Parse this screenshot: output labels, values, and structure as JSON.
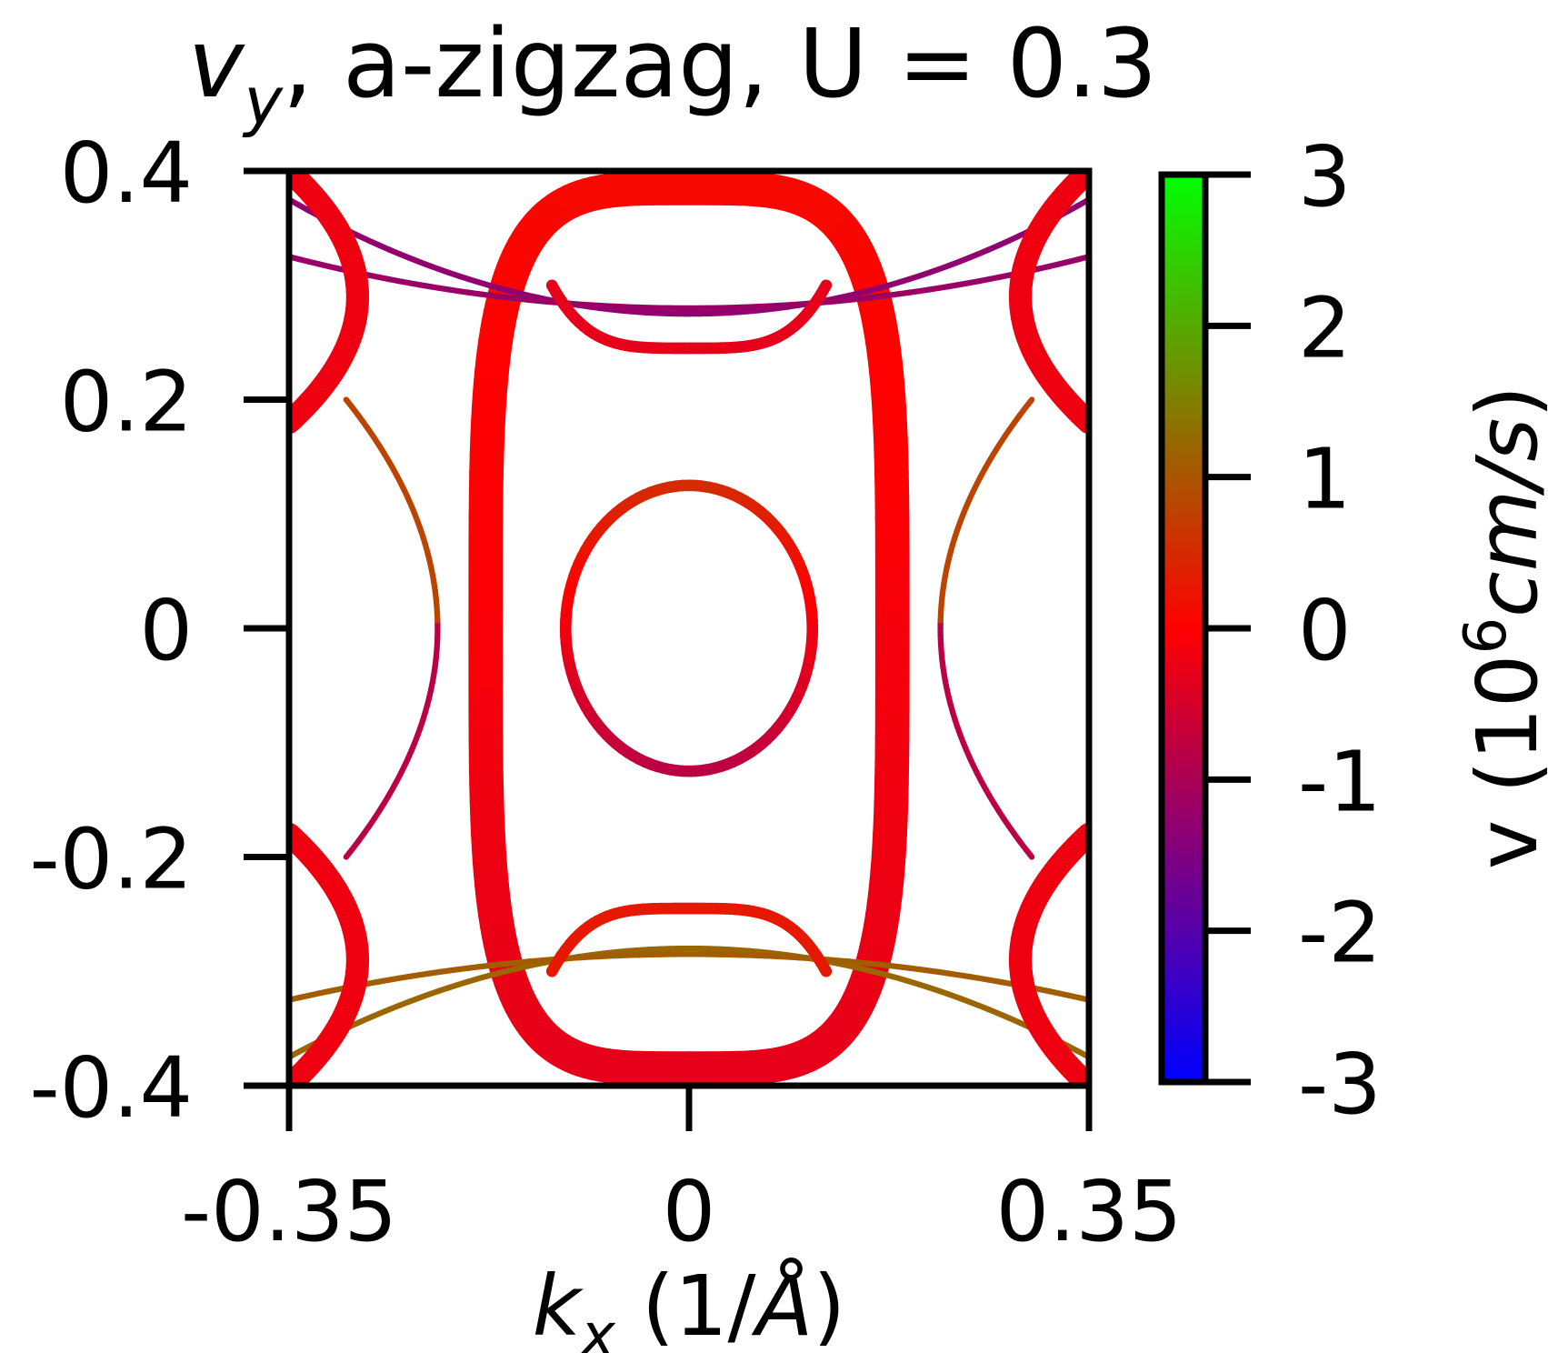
{
  "chart_data": {
    "type": "scatter",
    "title": {
      "symbol": "v",
      "subscript": "y",
      "rest": ", a-zigzag, U = 0.3"
    },
    "xlabel": {
      "symbol": "k",
      "subscript": "x",
      "rest_prefix": " (1/",
      "unit": "Å",
      "rest_suffix": ")"
    },
    "xlim": [
      -0.35,
      0.35
    ],
    "ylim": [
      -0.4,
      0.4
    ],
    "x_ticks": [
      {
        "value": -0.35,
        "label": "-0.35"
      },
      {
        "value": 0,
        "label": "0"
      },
      {
        "value": 0.35,
        "label": "0.35"
      }
    ],
    "y_ticks": [
      {
        "value": -0.4,
        "label": "-0.4"
      },
      {
        "value": -0.2,
        "label": "-0.2"
      },
      {
        "value": 0,
        "label": "0"
      },
      {
        "value": 0.2,
        "label": "0.2"
      },
      {
        "value": 0.4,
        "label": "0.4"
      }
    ],
    "colorbar": {
      "label_prefix": "v (10",
      "label_exponent": "6",
      "label_unit": "cm/s",
      "label_suffix": ")",
      "range": [
        -3,
        3
      ],
      "ticks": [
        {
          "value": 3,
          "label": "3"
        },
        {
          "value": 2,
          "label": "2"
        },
        {
          "value": 1,
          "label": "1"
        },
        {
          "value": 0,
          "label": "0"
        },
        {
          "value": -1,
          "label": "-1"
        },
        {
          "value": -2,
          "label": "-2"
        },
        {
          "value": -3,
          "label": "-3"
        }
      ],
      "colors": {
        "low": "#0000ff",
        "mid": "#ff0000",
        "high": "#00ff00"
      }
    },
    "grid": false,
    "features": [
      {
        "name": "central-pocket",
        "shape": "ellipse",
        "center": [
          0,
          0
        ],
        "rx": 0.108,
        "ry": 0.125,
        "width": 0.01,
        "v_top": 0.5,
        "v_bottom": -0.8
      },
      {
        "name": "outer-pocket",
        "shape": "superellipse",
        "center": [
          0,
          0
        ],
        "rx": 0.178,
        "ry": 0.385,
        "width": 0.03,
        "v_top": 0.1,
        "v_bottom": -0.3
      },
      {
        "name": "top-electron-arc",
        "shape": "parabola",
        "x_range": [
          -0.35,
          0.35
        ],
        "y_center": 0.275,
        "y_edge": 0.375,
        "width": 0.005,
        "v": -1.3
      },
      {
        "name": "top-flat-arc",
        "shape": "parabola",
        "x_range": [
          -0.35,
          0.35
        ],
        "y_center": 0.28,
        "y_edge": 0.325,
        "width": 0.005,
        "v": -1.2
      },
      {
        "name": "bottom-electron-arc",
        "shape": "parabola",
        "x_range": [
          -0.35,
          0.35
        ],
        "y_center": -0.28,
        "y_edge": -0.375,
        "width": 0.005,
        "v": 1.2
      },
      {
        "name": "bottom-flat-arc",
        "shape": "parabola",
        "x_range": [
          -0.35,
          0.35
        ],
        "y_center": -0.285,
        "y_edge": -0.325,
        "width": 0.005,
        "v": 1.1
      },
      {
        "name": "inner-top-pocket",
        "shape": "arc",
        "x_range": [
          -0.12,
          0.12
        ],
        "y_center": 0.245,
        "y_edge": 0.3,
        "width": 0.01,
        "v": -0.3
      },
      {
        "name": "inner-bottom-pocket",
        "shape": "arc",
        "x_range": [
          -0.12,
          0.12
        ],
        "y_center": -0.245,
        "y_edge": -0.3,
        "width": 0.01,
        "v": 0.3
      },
      {
        "name": "side-pockets",
        "shape": "mirrored-curves",
        "x_edge": 0.35,
        "y_range": [
          -0.4,
          0.4
        ],
        "v": -0.2
      },
      {
        "name": "side-lens-curves",
        "shape": "mirrored-lens",
        "x_range": [
          0.22,
          0.3
        ],
        "y_range": [
          -0.2,
          0.2
        ],
        "width": 0.005,
        "v": 0.8
      }
    ]
  }
}
